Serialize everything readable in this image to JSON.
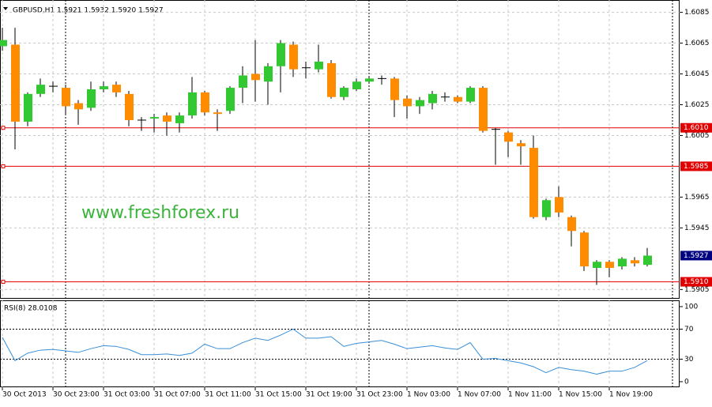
{
  "chart_data": {
    "type": "candlestick",
    "title": "GBPUSD,H1  1.5921 1.5932 1.5920 1.5927",
    "watermark": "www.freshforex.ru",
    "categories": [
      "30 Oct 2013",
      null,
      null,
      null,
      "30 Oct 23:00",
      null,
      null,
      null,
      "31 Oct 03:00",
      null,
      null,
      null,
      "31 Oct 07:00",
      null,
      null,
      null,
      "31 Oct 11:00",
      null,
      null,
      null,
      "31 Oct 15:00",
      null,
      null,
      null,
      "31 Oct 19:00",
      null,
      null,
      null,
      "31 Oct 23:00",
      null,
      null,
      null,
      "1 Nov 03:00",
      null,
      null,
      null,
      "1 Nov 07:00",
      null,
      null,
      null,
      "1 Nov 11:00",
      null,
      null,
      null,
      "1 Nov 15:00",
      null,
      null,
      null,
      "1 Nov 19:00",
      null,
      null,
      null
    ],
    "open": [
      1.6063,
      1.6064,
      1.6014,
      1.6032,
      1.6037,
      1.6036,
      1.6026,
      1.6023,
      1.6035,
      1.6038,
      1.6032,
      1.6015,
      1.6016,
      1.6018,
      1.6013,
      1.6018,
      1.6033,
      1.602,
      1.6021,
      1.6036,
      1.6045,
      1.604,
      1.605,
      1.6064,
      1.6049,
      1.6048,
      1.6052,
      1.603,
      1.6035,
      1.604,
      1.6042,
      1.6042,
      1.6029,
      1.6024,
      1.6026,
      1.603,
      1.603,
      1.6027,
      1.6036,
      1.6009,
      1.6007,
      1.6,
      1.5997,
      1.5952,
      1.5965,
      1.5952,
      1.5942,
      1.5919,
      1.5923,
      1.592,
      1.5924,
      1.5921
    ],
    "high": [
      1.6075,
      1.6075,
      1.6033,
      1.6042,
      1.604,
      1.6038,
      1.6028,
      1.604,
      1.604,
      1.604,
      1.6034,
      1.6017,
      1.6019,
      1.602,
      1.602,
      1.6043,
      1.6034,
      1.6022,
      1.6037,
      1.605,
      1.6067,
      1.6052,
      1.6067,
      1.6066,
      1.6053,
      1.6064,
      1.6054,
      1.6037,
      1.6042,
      1.6043,
      1.6044,
      1.6043,
      1.6031,
      1.603,
      1.6034,
      1.6033,
      1.6031,
      1.6037,
      1.6037,
      1.601,
      1.6008,
      1.6002,
      1.6005,
      1.5964,
      1.5972,
      1.5953,
      1.5943,
      1.5924,
      1.5924,
      1.5926,
      1.5926,
      1.5932
    ],
    "low": [
      1.606,
      1.5996,
      1.6011,
      1.603,
      1.6033,
      1.6019,
      1.6012,
      1.6021,
      1.6033,
      1.603,
      1.6011,
      1.6008,
      1.6007,
      1.6005,
      1.6007,
      1.6016,
      1.6018,
      1.6008,
      1.6019,
      1.6026,
      1.6027,
      1.6025,
      1.6033,
      1.6043,
      1.6042,
      1.6046,
      1.6029,
      1.6028,
      1.6034,
      1.6039,
      1.6038,
      1.6017,
      1.6016,
      1.6019,
      1.6022,
      1.6027,
      1.6026,
      1.6026,
      1.6007,
      1.5986,
      1.5991,
      1.5986,
      1.5951,
      1.595,
      1.5952,
      1.5933,
      1.5917,
      1.5908,
      1.5913,
      1.5918,
      1.592,
      1.592
    ],
    "close": [
      1.6067,
      1.6014,
      1.6032,
      1.6038,
      1.6037,
      1.6024,
      1.6022,
      1.6035,
      1.6037,
      1.6033,
      1.6015,
      1.6015,
      1.6017,
      1.6014,
      1.6018,
      1.6033,
      1.602,
      1.6019,
      1.6036,
      1.6044,
      1.6041,
      1.605,
      1.6065,
      1.6048,
      1.6049,
      1.6053,
      1.603,
      1.6036,
      1.604,
      1.6042,
      1.6042,
      1.6028,
      1.6024,
      1.6028,
      1.6032,
      1.603,
      1.6027,
      1.6036,
      1.6008,
      1.6009,
      1.6001,
      1.5998,
      1.5952,
      1.5963,
      1.5955,
      1.5943,
      1.592,
      1.5923,
      1.5919,
      1.5925,
      1.5922,
      1.5927
    ],
    "up_color": "#32c832",
    "down_color": "#ff8c00",
    "ylim": [
      1.5899,
      1.6093
    ],
    "yticks": [
      1.6085,
      1.6065,
      1.6045,
      1.6025,
      1.6005,
      1.5965,
      1.5945,
      1.5905
    ],
    "grid": true,
    "levels": [
      {
        "value": 1.601,
        "label": "1.6010"
      },
      {
        "value": 1.5985,
        "label": "1.5985"
      },
      {
        "value": 1.591,
        "label": "1.5910"
      }
    ],
    "level_color": "#e00000",
    "last_price": 1.5927,
    "rsi": {
      "title": "RSI(8) 28.0108",
      "color": "#3a8fd8",
      "values": [
        59,
        28,
        38,
        42,
        43,
        41,
        39,
        44,
        48,
        47,
        43,
        36,
        36,
        37,
        35,
        38,
        50,
        44,
        44,
        52,
        58,
        55,
        62,
        70,
        58,
        58,
        60,
        47,
        51,
        53,
        55,
        50,
        44,
        46,
        48,
        45,
        43,
        52,
        30,
        31,
        28,
        25,
        20,
        12,
        19,
        16,
        14,
        10,
        14,
        14,
        19,
        28.0108
      ],
      "ylim": [
        -7.4,
        108.4
      ],
      "yticks": [
        100,
        70,
        30,
        0
      ],
      "levels": [
        70,
        30
      ]
    }
  }
}
